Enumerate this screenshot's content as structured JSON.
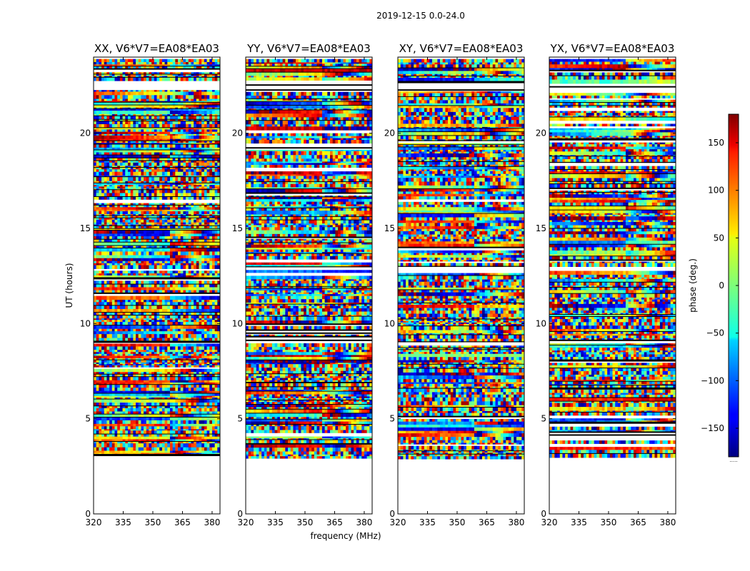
{
  "figure": {
    "suptitle": "2019-12-15 0.0-24.0",
    "xlabel": "frequency (MHz)",
    "ylabel": "UT (hours)"
  },
  "chart_data": {
    "type": "heatmap",
    "subtype": "waterfall phase (baseline vs time/frequency)",
    "x_range": [
      320,
      384
    ],
    "y_range": [
      0,
      24
    ],
    "x_ticks": [
      320,
      335,
      350,
      365,
      380
    ],
    "y_ticks": [
      0,
      5,
      10,
      15,
      20
    ],
    "panels": [
      {
        "title": "XX, V6*V7=EA08*EA03",
        "pol": "XX"
      },
      {
        "title": "YY, V6*V7=EA08*EA03",
        "pol": "YY"
      },
      {
        "title": "XY, V6*V7=EA08*EA03",
        "pol": "XY"
      },
      {
        "title": "YX, V6*V7=EA08*EA03",
        "pol": "YX"
      }
    ],
    "data_extent_hours": [
      3.0,
      23.9
    ],
    "gaps_hours": [
      [
        22.3,
        22.8
      ],
      [
        9.0,
        9.2
      ],
      [
        12.85,
        13.0
      ],
      [
        4.25,
        4.35
      ]
    ],
    "colorbar": {
      "label": "phase (deg.)",
      "range": [
        -180,
        180
      ],
      "ticks": [
        -150,
        -100,
        -50,
        0,
        50,
        100,
        150
      ],
      "colormap": "jet",
      "below_note": "....."
    }
  }
}
